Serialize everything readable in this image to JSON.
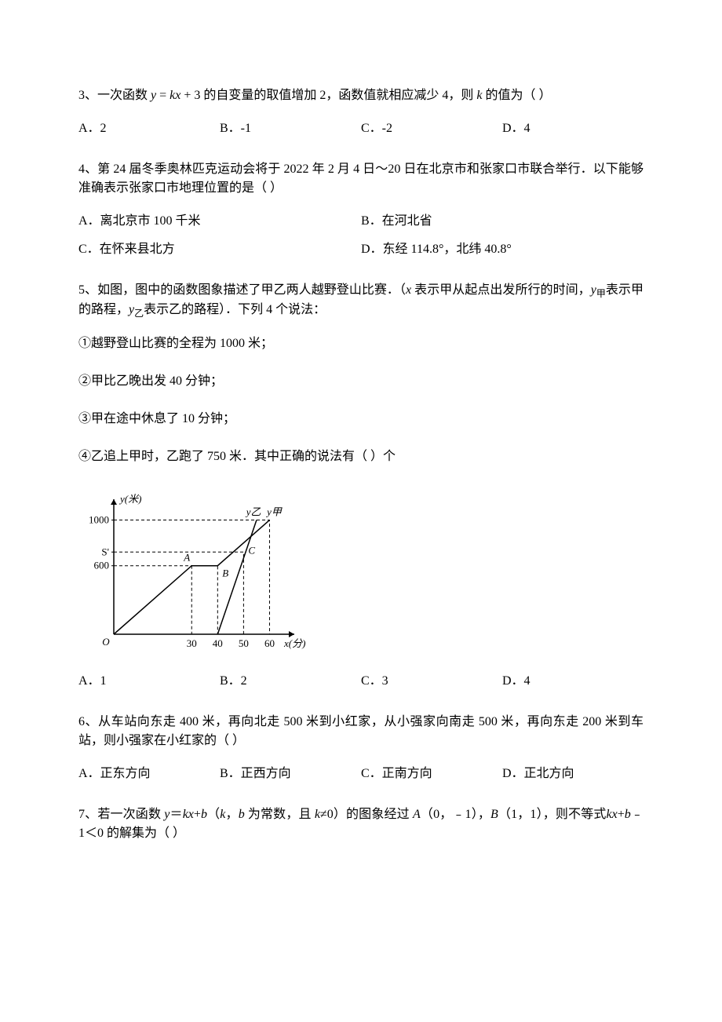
{
  "q3": {
    "text_prefix": "3、一次函数 ",
    "formula1_y": "y",
    "formula1_eq": " = ",
    "formula1_k": "kx",
    "formula1_plus": " + 3",
    "text_suffix": " 的自变量的取值增加 2，函数值就相应减少 4，则 ",
    "k_var": "k",
    "text_end": " 的值为（     ）",
    "optA": "A．2",
    "optB": "B．-1",
    "optC": "C．-2",
    "optD": "D．4"
  },
  "q4": {
    "text": "4、第 24 届冬季奥林匹克运动会将于 2022 年 2 月 4 日～20 日在北京市和张家口市联合举行．以下能够准确表示张家口市地理位置的是（       ）",
    "optA": "A．离北京市 100 千米",
    "optB": "B．在河北省",
    "optC": "C．在怀来县北方",
    "optD": "D．东经 114.8°，北纬 40.8°"
  },
  "q5": {
    "text_prefix": "5、如图，图中的函数图象描述了甲乙两人越野登山比赛．（",
    "x_var": "x",
    "text_mid1": " 表示甲从起点出发所行的时间，",
    "y_jia": "y",
    "jia_sub": "甲",
    "text_mid2": "表示甲的路程，",
    "y_yi": "y",
    "yi_sub": "乙",
    "text_end": "表示乙的路程）．下列 4 个说法：",
    "item1": "①越野登山比赛的全程为 1000 米；",
    "item2": "②甲比乙晚出发 40 分钟；",
    "item3": "③甲在途中休息了 10 分钟；",
    "item4": "④乙追上甲时，乙跑了 750 米．其中正确的说法有（       ）个",
    "chart": {
      "y_axis_label": "y(米)",
      "x_axis_label": "x(分)",
      "y_ticks": [
        {
          "label": "1000",
          "value": 1000
        },
        {
          "label": "S'",
          "value": 720
        },
        {
          "label": "600",
          "value": 600
        }
      ],
      "x_ticks": [
        {
          "label": "30",
          "value": 30
        },
        {
          "label": "40",
          "value": 40
        },
        {
          "label": "50",
          "value": 50
        },
        {
          "label": "60",
          "value": 60
        }
      ],
      "point_labels": {
        "A": "A",
        "B": "B",
        "C": "C",
        "y_yi": "y乙",
        "y_jia": "y甲"
      },
      "lines": {
        "jia": [
          [
            0,
            0
          ],
          [
            30,
            600
          ],
          [
            40,
            600
          ],
          [
            60,
            1000
          ]
        ],
        "yi": [
          [
            40,
            0
          ],
          [
            55,
            1000
          ]
        ]
      },
      "dashed_lines": [
        [
          [
            0,
            1000
          ],
          [
            60,
            1000
          ],
          [
            60,
            0
          ]
        ],
        [
          [
            0,
            720
          ],
          [
            50,
            720
          ],
          [
            50,
            0
          ]
        ],
        [
          [
            0,
            600
          ],
          [
            40,
            600
          ],
          [
            40,
            0
          ]
        ],
        [
          [
            30,
            600
          ],
          [
            30,
            0
          ]
        ]
      ],
      "colors": {
        "axis": "#000000",
        "line": "#000000",
        "dashed": "#000000",
        "background": "#ffffff"
      },
      "xlim": [
        0,
        65
      ],
      "ylim": [
        0,
        1100
      ],
      "font_size": 13
    },
    "optA": "A．1",
    "optB": "B．2",
    "optC": "C．3",
    "optD": "D．4"
  },
  "q6": {
    "text": "6、从车站向东走 400 米，再向北走 500 米到小红家，从小强家向南走 500 米，再向东走 200 米到车站，则小强家在小红家的（       ）",
    "optA": "A．正东方向",
    "optB": "B．正西方向",
    "optC": "C．正南方向",
    "optD": "D．正北方向"
  },
  "q7": {
    "text_prefix": "7、若一次函数 ",
    "y_var": "y",
    "eq": "＝",
    "kx": "kx",
    "plus": "+",
    "b_var": "b",
    "text_mid1": "（",
    "k_var": "k",
    "comma": "，",
    "b_var2": "b",
    "text_mid2": " 为常数，且 ",
    "k_var2": "k",
    "neq": "≠0）的图象经过 ",
    "A_var": "A",
    "A_coord": "（0，﹣1），",
    "B_var": "B",
    "B_coord": "（1，1），则不等式",
    "kx2": "kx",
    "plus2": "+",
    "b_var3": "b",
    "text_end": "﹣1＜0 的解集为（    ）"
  }
}
